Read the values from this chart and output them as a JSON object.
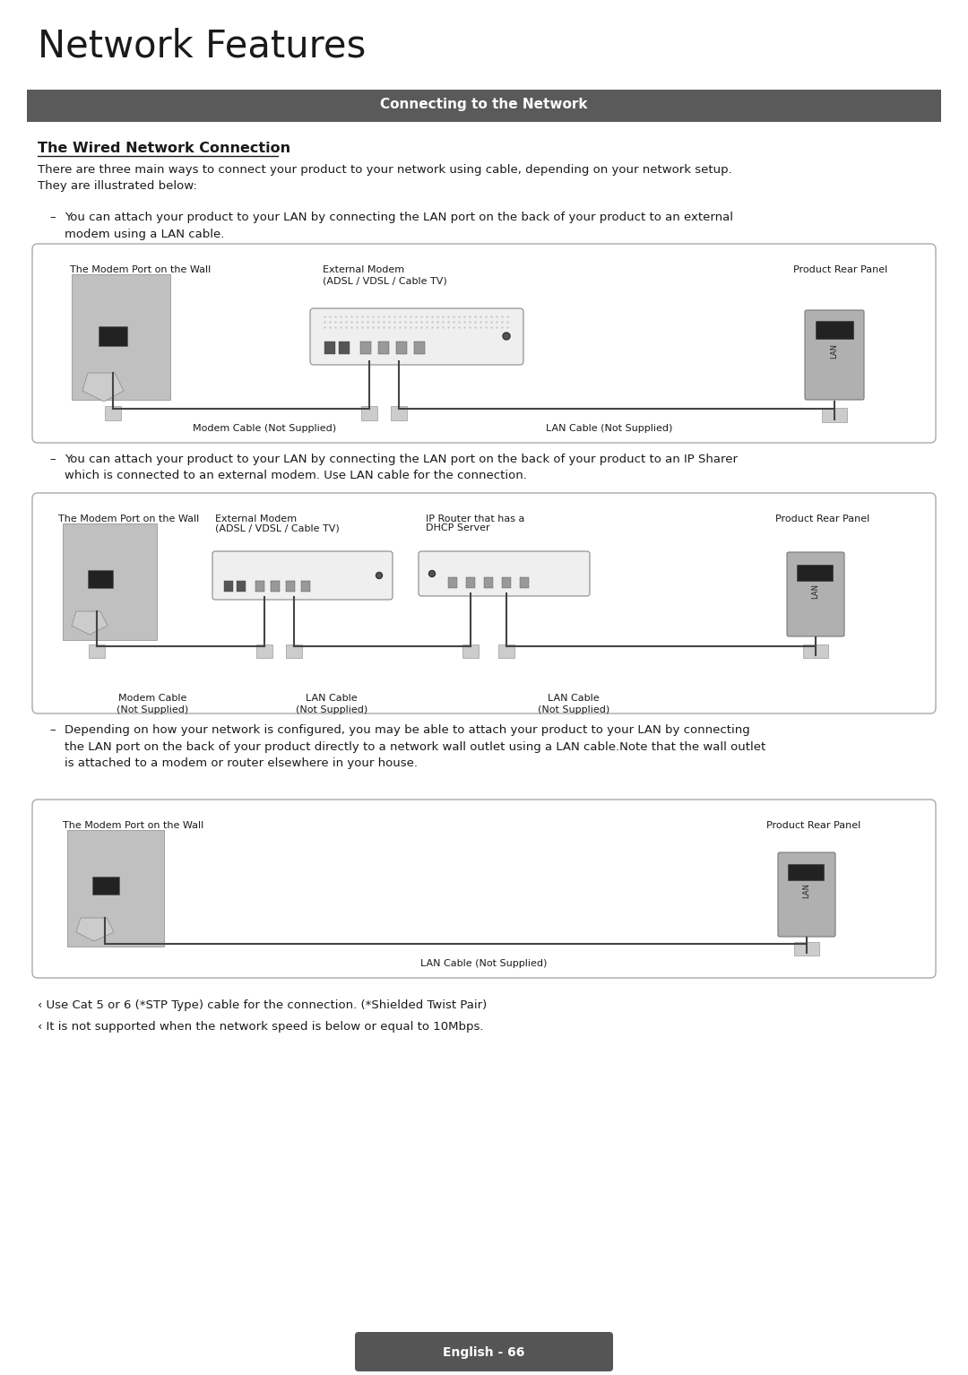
{
  "title": "Network Features",
  "section_header": "Connecting to the Network",
  "section_header_bg": "#5a5a5a",
  "section_header_color": "#ffffff",
  "subsection_title": "The Wired Network Connection",
  "background_color": "#ffffff",
  "body_color": "#1a1a1a",
  "intro_text": "There are three main ways to connect your product to your network using cable, depending on your network setup.\nThey are illustrated below:",
  "bullet1_text": "You can attach your product to your LAN by connecting the LAN port on the back of your product to an external\nmodem using a LAN cable.",
  "bullet2_text": "You can attach your product to your LAN by connecting the LAN port on the back of your product to an IP Sharer\nwhich is connected to an external modem. Use LAN cable for the connection.",
  "bullet3_text": "Depending on how your network is configured, you may be able to attach your product to your LAN by connecting\nthe LAN port on the back of your product directly to a network wall outlet using a LAN cable.Note that the wall outlet\nis attached to a modem or router elsewhere in your house.",
  "note1": "‹ Use Cat 5 or 6 (*STP Type) cable for the connection. (*Shielded Twist Pair)",
  "note2": "‹ It is not supported when the network speed is below or equal to 10Mbps.",
  "footer": "English - 66",
  "box_border": "#aaaaaa",
  "cable_color": "#444444",
  "text_small": 8,
  "text_body": 9.5,
  "text_title": 30,
  "text_header": 11
}
